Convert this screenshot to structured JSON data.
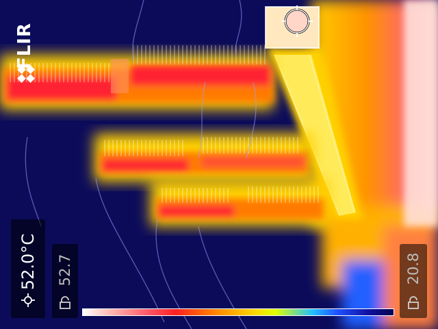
{
  "camera": {
    "brand": "FLIR",
    "spot_temperature": "52.0°C",
    "span_max": "52.7",
    "span_min": "20.8"
  },
  "icons": {
    "logo": "flir-diamond-logo",
    "spot": "crosshair-icon",
    "lock": "lock-icon",
    "meter": "spot-meter-circle-icon"
  },
  "palette": {
    "background": "#0b0b5a",
    "hot": "#ff3040",
    "warm": "#ffd000",
    "white": "#ffffff"
  }
}
